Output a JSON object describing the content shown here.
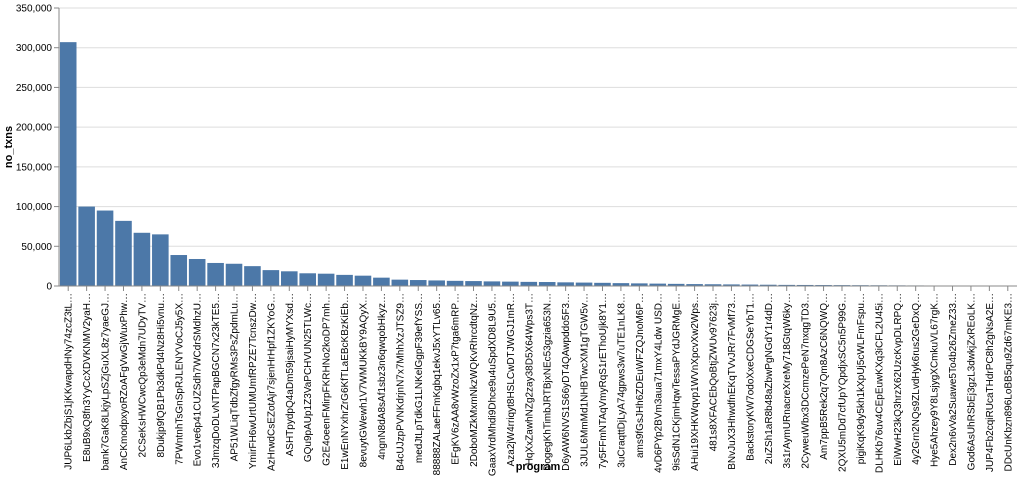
{
  "chart_data": {
    "type": "bar",
    "xlabel": "program",
    "ylabel": "no_txns",
    "ylim": [
      0,
      350000
    ],
    "yticks": [
      0,
      50000,
      100000,
      150000,
      200000,
      250000,
      300000,
      350000
    ],
    "ytick_labels": [
      "0",
      "50,000",
      "100,000",
      "150,000",
      "200,000",
      "250,000",
      "300,000",
      "350,000"
    ],
    "grid": true,
    "bar_color": "#4c78a8",
    "categories": [
      "JUP6LkbZbjS1jKKwapdHNy74zcZ3tL…",
      "E8uB9xQ8fn3YyCcXDVKNMV2yaH…",
      "bank7GaK8LkjyLpSZjGuXL8z7yaeGJ…",
      "AnCKmodpxyoRZoAFgVwGjWuxPhw…",
      "2CSeKsHWCwcQp3eMdn7UDyTV…",
      "8Dukjp9fQB1Pb3dkPd4Nz8Hi5vnu…",
      "7PWntnhTsGnSpRJLENYVoCJ5y5X…",
      "Evo1ve6p41CUZSdh7WCdrSMdhzU…",
      "3JmzqDoDLvNTPapBGCN7x23kTE5…",
      "AP51WLiqTdbZfgyRMs3PsZpdmLu…",
      "YmirFH6wUrtUMUmfRPZE7TcnszDw…",
      "AzHrwdCsEZotAjr7sjenHrHpf1ZKYoG…",
      "ASHTpydpQ4aDm59jsaiHyMYXsd…",
      "GQu9pAUp1Z3VaPCHVUN25TLWc…",
      "G2E4oeenFMirpFKRHNo2koDP7mh…",
      "E1wEnNYxhrZrG6KfTLaEBcKBzKiEb…",
      "8evuytGWewh1V7WMUKkBY9AQyX…",
      "4ngnN8dA8sAf1sbz3n6qwqobHkyz…",
      "B4cUJzpPVNKdrjnN7x7MhhXzJTSZ9…",
      "medJtLpTdkG1LNKelGgpF39efYSS…",
      "88888ZALaeFFmKgbq1ekvJ5xYTLv65…",
      "EFgKV6zAA8vWzoZx1xP7tga6mRP…",
      "2DoboMZkMxmNkzWQKvRhrcdtqNz…",
      "GaaxVrdMhdi9Dhce9u4uSpdXD8L9U5…",
      "Aza2jW4rriqyt8HSLCwDTJWGJ1mR…",
      "HqXxZawhNZg2zay38D5X64Wps3T…",
      "DogegKhTimbJRTBjxNEc53gzia653N…",
      "D6yAW6NVS1S66yDT4QAwpddo5F3…",
      "3JUL6MmMd1NHBTwcXM1gTGW5v…",
      "7y5FFmNTAqVmyRqS1rEThoUjk8Y1…",
      "3uCraqttDjLyA74gpws3w7uTE1nLK8…",
      "ams9fGsJHh6ZDEuWFZQJnoM6P…",
      "4vD6PYp2BVm3aua71mxY4Ldw USD…",
      "9isSdN1CKjmHqwTessaPYdJGRMgE…",
      "AHui19XHKWqvp1WVnXpcvXw2Wps…",
      "481s8XFACEbQoBtjZWUv97623j…",
      "BNvJuX3HhwdfnEKqTVvJRr7FvMf73…",
      "BackstoryKW7odoXxeCDGSeYbT1…",
      "2uZSh1aR8b48aZbwPgNGdY1r4dD…",
      "3s1rAymURnacreXreMy718GtqW6ky…",
      "2CyweuWbx3DCcmzePeN7nxqgTD3…",
      "Am7ppB5Rek2q7Qm8AzC6NQWQ…",
      "2QXU5mDd7cfUpYQpdjxSC5n5P99G…",
      "pigiKqK9dy5kh1kXpUj5cWLFmFspu…",
      "DLHKb76uv4CEpEuwKXq3iCFL2U45i…",
      "EiWwH23kQ3hrzX62UzcKvpDLRPQ…",
      "4y2Grn2NQs9ZLvdHyk6rus2GeDxQ…",
      "Hye5Ahzey9Y8LsjygXCmkuVL67rgK…",
      "Dex2n6vVa2Suawe5To4b26ZmeZ33…",
      "God6AsUhRSbEj3gzL3dwkjZxREoLK…",
      "JUP4Fb2cqiRUcaTHdrPC8h2gNsA2E…",
      "DDcUnKbzn896LoBB5qu9Zd67mKE3…"
    ],
    "values": [
      307000,
      100000,
      95000,
      82000,
      67000,
      65000,
      39000,
      34000,
      29000,
      28000,
      25000,
      20000,
      18500,
      16000,
      15500,
      14000,
      13000,
      10500,
      8000,
      7500,
      7000,
      6500,
      6200,
      5800,
      5500,
      5200,
      5000,
      4600,
      4300,
      4000,
      3600,
      3300,
      3000,
      2700,
      2400,
      2200,
      2000,
      1800,
      1600,
      1400,
      1300,
      1200,
      1100,
      1000,
      900,
      800,
      700,
      600,
      500,
      400,
      300,
      200
    ]
  }
}
